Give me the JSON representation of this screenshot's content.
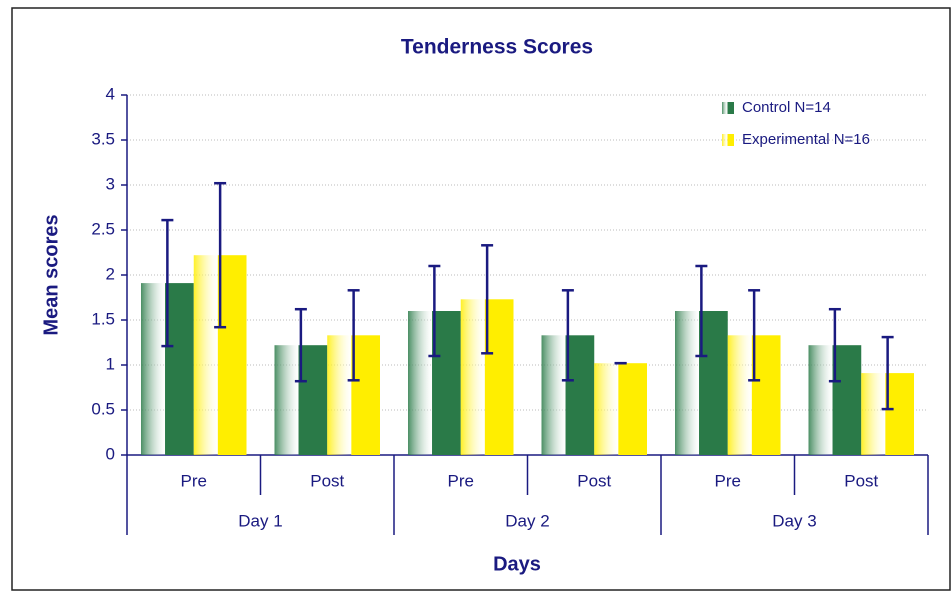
{
  "chart_data": {
    "type": "bar",
    "title": "Tenderness Scores",
    "x_label": "Days",
    "y_label": "Mean scores",
    "categories": [
      "Pre",
      "Post",
      "Pre",
      "Post",
      "Pre",
      "Post"
    ],
    "groups": [
      "Day 1",
      "Day 2",
      "Day 3"
    ],
    "series": [
      {
        "name": "Control N=14",
        "color": "#2a7a48",
        "values": [
          1.91,
          1.22,
          1.6,
          1.33,
          1.6,
          1.22
        ],
        "errors": [
          0.7,
          0.4,
          0.5,
          0.5,
          0.5,
          0.4
        ]
      },
      {
        "name": "Experimental N=16",
        "color": "#ffee00",
        "values": [
          2.22,
          1.33,
          1.73,
          1.02,
          1.33,
          0.91
        ],
        "errors": [
          0.8,
          0.5,
          0.6,
          0,
          0.5,
          0.4
        ]
      }
    ],
    "ylim": [
      0,
      4
    ],
    "yticks": [
      0,
      0.5,
      1,
      1.5,
      2,
      2.5,
      3,
      3.5,
      4
    ],
    "grid": true,
    "legend": "top-right"
  }
}
